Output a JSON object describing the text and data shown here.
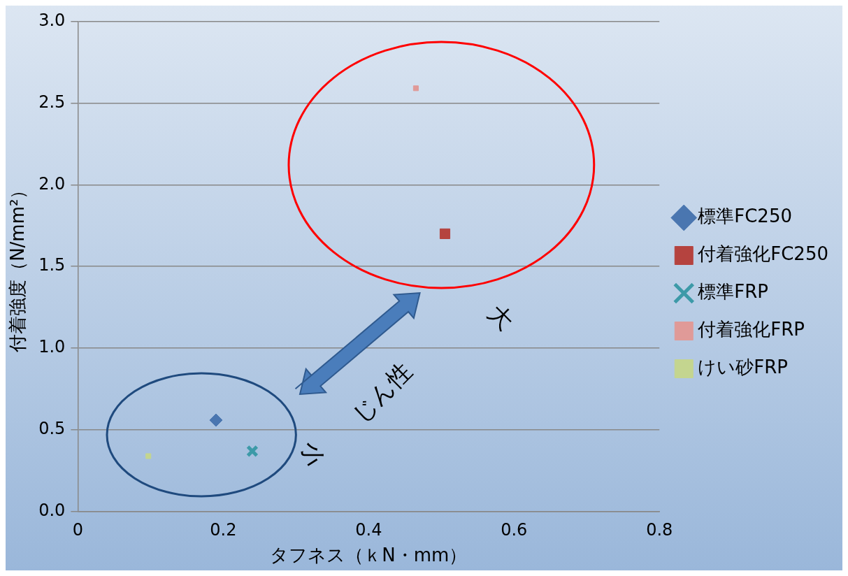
{
  "chart_data": {
    "type": "scatter",
    "xlabel": "タフネス（ｋN・mm）",
    "ylabel": "付着強度（N/mm²）",
    "xlim": [
      0,
      0.8
    ],
    "xticks": [
      0,
      0.2,
      0.4,
      0.6,
      0.8
    ],
    "ylim": [
      0,
      3.0
    ],
    "yticks": [
      {
        "value": 0,
        "label": "0.0"
      },
      0.5,
      {
        "value": 1,
        "label": "1.0"
      },
      1.5,
      {
        "value": 2,
        "label": "2.0"
      },
      2.5,
      {
        "value": 3,
        "label": "3.0"
      }
    ],
    "grid": "y",
    "legend": "right",
    "series": [
      {
        "name": "標準FC250",
        "color": "#4a76b0",
        "marker": "diamond",
        "x": [
          0.19
        ],
        "values": [
          0.56
        ]
      },
      {
        "name": "付着強化FC250",
        "color": "#b5433f",
        "marker": "square",
        "x": [
          0.505
        ],
        "values": [
          1.7
        ]
      },
      {
        "name": "標準FRP",
        "color": "#3d9aa8",
        "marker": "cross",
        "x": [
          0.24
        ],
        "values": [
          0.37
        ]
      },
      {
        "name": "付着強化FRP",
        "color": "#e09a98",
        "marker": "square",
        "x": [
          0.465
        ],
        "values": [
          2.59
        ]
      },
      {
        "name": "けい砂FRP",
        "color": "#c4d58f",
        "marker": "square",
        "x": [
          0.097
        ],
        "values": [
          0.34
        ]
      }
    ],
    "annotations": [
      "小",
      "じん性",
      "大"
    ]
  }
}
